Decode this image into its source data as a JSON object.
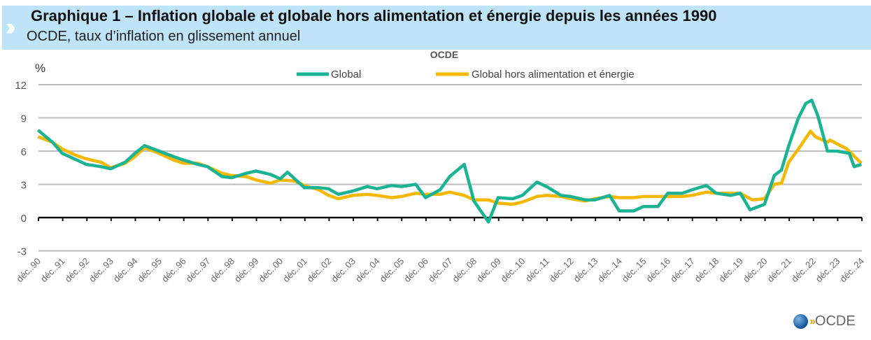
{
  "header": {
    "title": "Graphique 1 – Inflation globale et globale hors alimentation et énergie depuis les années 1990",
    "subtitle": "OCDE, taux d’inflation en glissement annuel",
    "logo_text": "OCDE"
  },
  "chart_data": {
    "type": "line",
    "title": "OCDE",
    "ylabel": "%",
    "ylim": [
      -3,
      12
    ],
    "yticks": [
      "12",
      "9",
      "6",
      "3",
      "0",
      "-3"
    ],
    "ytick_values": [
      12,
      9,
      6,
      3,
      0,
      -3
    ],
    "xlim": [
      1990.92,
      2024.92
    ],
    "xticks": [
      "déc..90",
      "déc..91",
      "déc..92",
      "déc..93",
      "déc..94",
      "déc..95",
      "déc..96",
      "déc..97",
      "déc..98",
      "déc..99",
      "déc..00",
      "déc..01",
      "déc..02",
      "déc..03",
      "déc..04",
      "déc..05",
      "déc..06",
      "déc..07",
      "déc..08",
      "déc..09",
      "déc..10",
      "déc..11",
      "déc..12",
      "déc..13",
      "déc..14",
      "déc..15",
      "déc..16",
      "déc..17",
      "déc..18",
      "déc..19",
      "déc..20",
      "déc..21",
      "déc..22",
      "déc..23",
      "déc..24"
    ],
    "grid": true,
    "legend_placement": "top-center",
    "colors": {
      "Global": "#1bb394",
      "Core": "#f5b800"
    },
    "series": [
      {
        "name": "Global",
        "key": "Global",
        "points": [
          [
            1990.9,
            7.9
          ],
          [
            1991.5,
            6.8
          ],
          [
            1991.9,
            5.8
          ],
          [
            1992.5,
            5.2
          ],
          [
            1992.9,
            4.8
          ],
          [
            1993.5,
            4.6
          ],
          [
            1993.9,
            4.4
          ],
          [
            1994.5,
            5.0
          ],
          [
            1994.9,
            5.8
          ],
          [
            1995.3,
            6.5
          ],
          [
            1995.9,
            6.0
          ],
          [
            1996.5,
            5.5
          ],
          [
            1996.9,
            5.2
          ],
          [
            1997.5,
            4.8
          ],
          [
            1997.9,
            4.6
          ],
          [
            1998.5,
            3.7
          ],
          [
            1998.9,
            3.6
          ],
          [
            1999.5,
            4.0
          ],
          [
            1999.9,
            4.2
          ],
          [
            2000.5,
            3.9
          ],
          [
            2000.9,
            3.5
          ],
          [
            2001.2,
            4.1
          ],
          [
            2001.9,
            2.7
          ],
          [
            2002.5,
            2.7
          ],
          [
            2002.9,
            2.6
          ],
          [
            2003.3,
            2.1
          ],
          [
            2003.9,
            2.4
          ],
          [
            2004.5,
            2.8
          ],
          [
            2004.9,
            2.6
          ],
          [
            2005.5,
            2.9
          ],
          [
            2005.9,
            2.8
          ],
          [
            2006.5,
            3.0
          ],
          [
            2006.9,
            1.8
          ],
          [
            2007.5,
            2.5
          ],
          [
            2007.9,
            3.7
          ],
          [
            2008.5,
            4.8
          ],
          [
            2008.9,
            1.5
          ],
          [
            2009.5,
            -0.4
          ],
          [
            2009.9,
            1.8
          ],
          [
            2010.5,
            1.7
          ],
          [
            2010.9,
            2.0
          ],
          [
            2011.5,
            3.2
          ],
          [
            2011.9,
            2.8
          ],
          [
            2012.5,
            2.0
          ],
          [
            2012.9,
            1.9
          ],
          [
            2013.5,
            1.6
          ],
          [
            2013.9,
            1.6
          ],
          [
            2014.5,
            2.0
          ],
          [
            2014.9,
            0.6
          ],
          [
            2015.5,
            0.6
          ],
          [
            2015.9,
            1.0
          ],
          [
            2016.5,
            1.0
          ],
          [
            2016.9,
            2.2
          ],
          [
            2017.5,
            2.2
          ],
          [
            2017.9,
            2.5
          ],
          [
            2018.5,
            2.9
          ],
          [
            2018.9,
            2.2
          ],
          [
            2019.5,
            2.0
          ],
          [
            2019.9,
            2.2
          ],
          [
            2020.3,
            0.7
          ],
          [
            2020.9,
            1.2
          ],
          [
            2021.3,
            3.8
          ],
          [
            2021.6,
            4.3
          ],
          [
            2021.9,
            6.5
          ],
          [
            2022.3,
            9.0
          ],
          [
            2022.6,
            10.3
          ],
          [
            2022.85,
            10.6
          ],
          [
            2023.1,
            9.2
          ],
          [
            2023.5,
            6.0
          ],
          [
            2023.9,
            6.0
          ],
          [
            2024.4,
            5.8
          ],
          [
            2024.6,
            4.6
          ],
          [
            2024.9,
            4.8
          ]
        ]
      },
      {
        "name": "Global hors alimentation et énergie",
        "key": "Core",
        "points": [
          [
            1990.9,
            7.3
          ],
          [
            1991.5,
            6.8
          ],
          [
            1991.9,
            6.2
          ],
          [
            1992.5,
            5.6
          ],
          [
            1992.9,
            5.3
          ],
          [
            1993.5,
            5.0
          ],
          [
            1993.9,
            4.5
          ],
          [
            1994.5,
            4.9
          ],
          [
            1994.9,
            5.5
          ],
          [
            1995.3,
            6.3
          ],
          [
            1995.9,
            5.8
          ],
          [
            1996.5,
            5.2
          ],
          [
            1996.9,
            4.9
          ],
          [
            1997.5,
            4.9
          ],
          [
            1997.9,
            4.6
          ],
          [
            1998.5,
            4.0
          ],
          [
            1998.9,
            3.8
          ],
          [
            1999.5,
            3.7
          ],
          [
            1999.9,
            3.4
          ],
          [
            2000.5,
            3.1
          ],
          [
            2000.9,
            3.4
          ],
          [
            2001.5,
            3.3
          ],
          [
            2001.9,
            2.9
          ],
          [
            2002.5,
            2.5
          ],
          [
            2002.9,
            2.0
          ],
          [
            2003.3,
            1.7
          ],
          [
            2003.9,
            2.0
          ],
          [
            2004.5,
            2.1
          ],
          [
            2004.9,
            2.0
          ],
          [
            2005.5,
            1.8
          ],
          [
            2005.9,
            1.9
          ],
          [
            2006.5,
            2.2
          ],
          [
            2006.9,
            2.1
          ],
          [
            2007.5,
            2.1
          ],
          [
            2007.9,
            2.3
          ],
          [
            2008.5,
            2.0
          ],
          [
            2008.9,
            1.6
          ],
          [
            2009.5,
            1.6
          ],
          [
            2009.9,
            1.3
          ],
          [
            2010.5,
            1.2
          ],
          [
            2010.9,
            1.4
          ],
          [
            2011.5,
            1.9
          ],
          [
            2011.9,
            2.0
          ],
          [
            2012.5,
            1.9
          ],
          [
            2012.9,
            1.7
          ],
          [
            2013.5,
            1.5
          ],
          [
            2013.9,
            1.7
          ],
          [
            2014.5,
            1.9
          ],
          [
            2014.9,
            1.8
          ],
          [
            2015.5,
            1.8
          ],
          [
            2015.9,
            1.9
          ],
          [
            2016.5,
            1.9
          ],
          [
            2016.9,
            1.9
          ],
          [
            2017.5,
            1.9
          ],
          [
            2017.9,
            2.0
          ],
          [
            2018.5,
            2.3
          ],
          [
            2018.9,
            2.2
          ],
          [
            2019.5,
            2.2
          ],
          [
            2019.9,
            2.2
          ],
          [
            2020.4,
            1.6
          ],
          [
            2020.9,
            1.7
          ],
          [
            2021.3,
            3.0
          ],
          [
            2021.6,
            3.1
          ],
          [
            2021.9,
            5.0
          ],
          [
            2022.3,
            6.2
          ],
          [
            2022.8,
            7.8
          ],
          [
            2023.0,
            7.3
          ],
          [
            2023.5,
            6.8
          ],
          [
            2023.6,
            7.0
          ],
          [
            2024.3,
            6.2
          ],
          [
            2024.9,
            4.9
          ]
        ]
      }
    ]
  }
}
